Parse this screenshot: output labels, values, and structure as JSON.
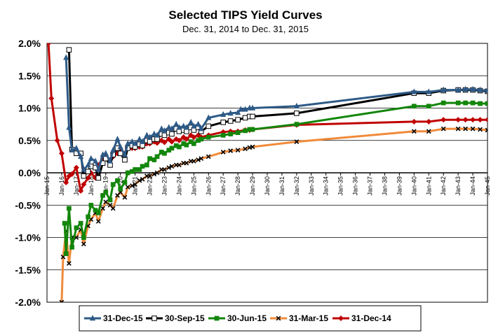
{
  "chart_data": {
    "type": "line",
    "title": "Selected TIPS Yield Curves",
    "subtitle": "Dec. 31, 2014 to Dec. 31, 2015",
    "xlabel": "",
    "ylabel": "",
    "x_ticks": [
      "Jan-15",
      "Jan-16",
      "Jan-17",
      "Jan-18",
      "Jan-19",
      "Jan-20",
      "Jan-21",
      "Jan-22",
      "Jan-23",
      "Jan-24",
      "Jan-25",
      "Jan-26",
      "Jan-27",
      "Jan-28",
      "Jan-29",
      "Jan-30",
      "Jan-31",
      "Jan-32",
      "Jan-33",
      "Jan-34",
      "Jan-35",
      "Jan-36",
      "Jan-37",
      "Jan-38",
      "Jan-39",
      "Jan-40",
      "Jan-41",
      "Jan-42",
      "Jan-43",
      "Jan-44",
      "Jan-45"
    ],
    "xlim": [
      2015,
      2045
    ],
    "ylim": [
      -2.0,
      2.0
    ],
    "y_ticks": [
      "-2.0%",
      "-1.5%",
      "-1.0%",
      "-0.5%",
      "0.0%",
      "0.5%",
      "1.0%",
      "1.5%",
      "2.0%"
    ],
    "y_tick_values": [
      -2.0,
      -1.5,
      -1.0,
      -0.5,
      0.0,
      0.5,
      1.0,
      1.5,
      2.0
    ],
    "grid": "horizontal",
    "legend_position": "bottom",
    "series": [
      {
        "name": "31-Dec-15",
        "color": "#2E5A87",
        "marker": "triangle",
        "points": [
          [
            2016.3,
            1.78
          ],
          [
            2016.5,
            0.7
          ],
          [
            2016.7,
            0.35
          ],
          [
            2017.0,
            0.38
          ],
          [
            2017.3,
            0.25
          ],
          [
            2017.5,
            0.05
          ],
          [
            2017.8,
            0.12
          ],
          [
            2018.0,
            0.22
          ],
          [
            2018.3,
            0.18
          ],
          [
            2018.5,
            0.05
          ],
          [
            2018.8,
            0.28
          ],
          [
            2019.0,
            0.3
          ],
          [
            2019.3,
            0.18
          ],
          [
            2019.5,
            0.35
          ],
          [
            2019.8,
            0.52
          ],
          [
            2020.0,
            0.4
          ],
          [
            2020.3,
            0.28
          ],
          [
            2020.5,
            0.45
          ],
          [
            2020.8,
            0.48
          ],
          [
            2021.0,
            0.45
          ],
          [
            2021.3,
            0.52
          ],
          [
            2021.5,
            0.48
          ],
          [
            2021.8,
            0.58
          ],
          [
            2022.0,
            0.55
          ],
          [
            2022.3,
            0.6
          ],
          [
            2022.5,
            0.58
          ],
          [
            2022.8,
            0.68
          ],
          [
            2023.0,
            0.65
          ],
          [
            2023.3,
            0.7
          ],
          [
            2023.5,
            0.68
          ],
          [
            2023.8,
            0.75
          ],
          [
            2024.0,
            0.7
          ],
          [
            2024.3,
            0.72
          ],
          [
            2024.5,
            0.7
          ],
          [
            2024.8,
            0.78
          ],
          [
            2025.0,
            0.72
          ],
          [
            2025.3,
            0.75
          ],
          [
            2025.5,
            0.68
          ],
          [
            2026.0,
            0.85
          ],
          [
            2027.0,
            0.9
          ],
          [
            2027.5,
            0.92
          ],
          [
            2028.0,
            0.93
          ],
          [
            2028.2,
            0.98
          ],
          [
            2028.5,
            0.98
          ],
          [
            2028.8,
            1.0
          ],
          [
            2029.0,
            1.0
          ],
          [
            2032.0,
            1.03
          ],
          [
            2040.0,
            1.25
          ],
          [
            2041.0,
            1.25
          ],
          [
            2042.0,
            1.28
          ],
          [
            2043.0,
            1.28
          ],
          [
            2043.5,
            1.29
          ],
          [
            2044.0,
            1.29
          ],
          [
            2044.5,
            1.28
          ],
          [
            2045.0,
            1.27
          ]
        ]
      },
      {
        "name": "30-Sep-15",
        "color": "#000000",
        "marker": "square-open",
        "points": [
          [
            2016.5,
            1.9
          ],
          [
            2016.7,
            0.36
          ],
          [
            2017.0,
            0.3
          ],
          [
            2017.3,
            0.3
          ],
          [
            2017.5,
            -0.05
          ],
          [
            2017.8,
            0.02
          ],
          [
            2018.0,
            0.1
          ],
          [
            2018.3,
            0.08
          ],
          [
            2018.5,
            -0.08
          ],
          [
            2018.8,
            0.15
          ],
          [
            2019.0,
            0.22
          ],
          [
            2019.3,
            0.12
          ],
          [
            2019.5,
            0.28
          ],
          [
            2019.8,
            0.38
          ],
          [
            2020.0,
            0.3
          ],
          [
            2020.3,
            0.2
          ],
          [
            2020.5,
            0.38
          ],
          [
            2020.8,
            0.42
          ],
          [
            2021.0,
            0.4
          ],
          [
            2021.3,
            0.44
          ],
          [
            2021.5,
            0.42
          ],
          [
            2021.8,
            0.5
          ],
          [
            2022.0,
            0.48
          ],
          [
            2022.3,
            0.52
          ],
          [
            2022.5,
            0.52
          ],
          [
            2022.8,
            0.6
          ],
          [
            2023.0,
            0.58
          ],
          [
            2023.3,
            0.62
          ],
          [
            2023.5,
            0.6
          ],
          [
            2023.8,
            0.68
          ],
          [
            2024.0,
            0.64
          ],
          [
            2024.3,
            0.66
          ],
          [
            2024.5,
            0.64
          ],
          [
            2024.8,
            0.7
          ],
          [
            2025.0,
            0.66
          ],
          [
            2025.3,
            0.7
          ],
          [
            2025.5,
            0.64
          ],
          [
            2026.0,
            0.72
          ],
          [
            2027.0,
            0.78
          ],
          [
            2027.5,
            0.8
          ],
          [
            2028.0,
            0.82
          ],
          [
            2028.5,
            0.85
          ],
          [
            2028.8,
            0.87
          ],
          [
            2029.0,
            0.87
          ],
          [
            2032.0,
            0.92
          ],
          [
            2040.0,
            1.23
          ],
          [
            2041.0,
            1.23
          ],
          [
            2042.0,
            1.27
          ],
          [
            2043.0,
            1.28
          ],
          [
            2043.5,
            1.28
          ],
          [
            2044.0,
            1.28
          ],
          [
            2044.5,
            1.27
          ],
          [
            2045.0,
            1.26
          ]
        ]
      },
      {
        "name": "30-Jun-15",
        "color": "#13860B",
        "marker": "square",
        "points": [
          [
            2016.2,
            -0.78
          ],
          [
            2016.3,
            -1.25
          ],
          [
            2016.5,
            -0.55
          ],
          [
            2016.7,
            -1.15
          ],
          [
            2017.0,
            -0.85
          ],
          [
            2017.3,
            -0.78
          ],
          [
            2017.5,
            -1.0
          ],
          [
            2017.8,
            -0.68
          ],
          [
            2018.0,
            -0.5
          ],
          [
            2018.3,
            -0.58
          ],
          [
            2018.5,
            -0.62
          ],
          [
            2018.8,
            -0.35
          ],
          [
            2019.0,
            -0.3
          ],
          [
            2019.3,
            -0.42
          ],
          [
            2019.5,
            -0.18
          ],
          [
            2019.8,
            -0.12
          ],
          [
            2020.0,
            -0.25
          ],
          [
            2020.3,
            -0.15
          ],
          [
            2020.5,
            0.0
          ],
          [
            2020.8,
            0.02
          ],
          [
            2021.0,
            0.05
          ],
          [
            2021.3,
            0.05
          ],
          [
            2021.5,
            0.1
          ],
          [
            2021.8,
            0.12
          ],
          [
            2022.0,
            0.22
          ],
          [
            2022.3,
            0.2
          ],
          [
            2022.5,
            0.25
          ],
          [
            2022.8,
            0.32
          ],
          [
            2023.0,
            0.3
          ],
          [
            2023.3,
            0.35
          ],
          [
            2023.5,
            0.38
          ],
          [
            2023.8,
            0.42
          ],
          [
            2024.0,
            0.4
          ],
          [
            2024.3,
            0.45
          ],
          [
            2024.5,
            0.43
          ],
          [
            2024.8,
            0.48
          ],
          [
            2025.0,
            0.45
          ],
          [
            2025.3,
            0.5
          ],
          [
            2025.5,
            0.52
          ],
          [
            2026.0,
            0.55
          ],
          [
            2027.0,
            0.58
          ],
          [
            2027.5,
            0.6
          ],
          [
            2028.0,
            0.62
          ],
          [
            2028.5,
            0.65
          ],
          [
            2028.8,
            0.67
          ],
          [
            2029.0,
            0.67
          ],
          [
            2032.0,
            0.75
          ],
          [
            2040.0,
            1.03
          ],
          [
            2041.0,
            1.03
          ],
          [
            2042.0,
            1.08
          ],
          [
            2043.0,
            1.08
          ],
          [
            2043.5,
            1.08
          ],
          [
            2044.0,
            1.08
          ],
          [
            2044.5,
            1.07
          ],
          [
            2045.0,
            1.07
          ]
        ]
      },
      {
        "name": "31-Mar-15",
        "color": "#F08A3A",
        "marker": "x",
        "points": [
          [
            2016.0,
            -2.0
          ],
          [
            2016.1,
            -1.3
          ],
          [
            2016.3,
            -0.9
          ],
          [
            2016.5,
            -1.4
          ],
          [
            2016.7,
            -1.0
          ],
          [
            2017.0,
            -1.0
          ],
          [
            2017.3,
            -0.88
          ],
          [
            2017.5,
            -1.1
          ],
          [
            2017.8,
            -0.82
          ],
          [
            2018.0,
            -0.72
          ],
          [
            2018.3,
            -0.62
          ],
          [
            2018.5,
            -0.75
          ],
          [
            2018.8,
            -0.55
          ],
          [
            2019.0,
            -0.45
          ],
          [
            2019.3,
            -0.5
          ],
          [
            2019.5,
            -0.55
          ],
          [
            2019.8,
            -0.35
          ],
          [
            2020.0,
            -0.3
          ],
          [
            2020.3,
            -0.38
          ],
          [
            2020.5,
            -0.22
          ],
          [
            2020.8,
            -0.2
          ],
          [
            2021.0,
            -0.18
          ],
          [
            2021.3,
            -0.12
          ],
          [
            2021.5,
            -0.1
          ],
          [
            2021.8,
            -0.05
          ],
          [
            2022.0,
            -0.05
          ],
          [
            2022.3,
            -0.02
          ],
          [
            2022.5,
            0.0
          ],
          [
            2022.8,
            0.05
          ],
          [
            2023.0,
            0.05
          ],
          [
            2023.3,
            0.08
          ],
          [
            2023.5,
            0.1
          ],
          [
            2023.8,
            0.12
          ],
          [
            2024.0,
            0.12
          ],
          [
            2024.3,
            0.15
          ],
          [
            2024.5,
            0.15
          ],
          [
            2024.8,
            0.18
          ],
          [
            2025.0,
            0.18
          ],
          [
            2025.3,
            0.2
          ],
          [
            2025.5,
            0.22
          ],
          [
            2026.0,
            0.25
          ],
          [
            2027.0,
            0.32
          ],
          [
            2027.5,
            0.34
          ],
          [
            2028.0,
            0.35
          ],
          [
            2028.5,
            0.37
          ],
          [
            2028.8,
            0.39
          ],
          [
            2029.0,
            0.4
          ],
          [
            2032.0,
            0.48
          ],
          [
            2040.0,
            0.64
          ],
          [
            2041.0,
            0.64
          ],
          [
            2042.0,
            0.68
          ],
          [
            2043.0,
            0.68
          ],
          [
            2043.5,
            0.68
          ],
          [
            2044.0,
            0.68
          ],
          [
            2044.5,
            0.67
          ],
          [
            2045.0,
            0.66
          ]
        ]
      },
      {
        "name": "31-Dec-14",
        "color": "#C00000",
        "marker": "diamond",
        "points": [
          [
            2015.1,
            2.0
          ],
          [
            2015.3,
            1.15
          ],
          [
            2015.7,
            0.5
          ],
          [
            2016.0,
            0.3
          ],
          [
            2016.3,
            -0.15
          ],
          [
            2016.5,
            -0.05
          ],
          [
            2016.7,
            -0.02
          ],
          [
            2017.0,
            0.08
          ],
          [
            2017.3,
            -0.28
          ],
          [
            2017.5,
            -0.18
          ],
          [
            2017.8,
            -0.08
          ],
          [
            2018.0,
            0.0
          ],
          [
            2018.3,
            -0.08
          ],
          [
            2018.5,
            0.12
          ],
          [
            2018.8,
            0.22
          ],
          [
            2019.0,
            0.26
          ],
          [
            2019.3,
            0.2
          ],
          [
            2019.5,
            0.25
          ],
          [
            2019.8,
            0.3
          ],
          [
            2020.0,
            0.35
          ],
          [
            2020.3,
            0.3
          ],
          [
            2020.5,
            0.38
          ],
          [
            2020.8,
            0.38
          ],
          [
            2021.0,
            0.38
          ],
          [
            2021.3,
            0.4
          ],
          [
            2021.5,
            0.4
          ],
          [
            2021.8,
            0.45
          ],
          [
            2022.0,
            0.45
          ],
          [
            2022.3,
            0.48
          ],
          [
            2022.5,
            0.46
          ],
          [
            2022.8,
            0.5
          ],
          [
            2023.0,
            0.47
          ],
          [
            2023.3,
            0.52
          ],
          [
            2023.5,
            0.48
          ],
          [
            2023.8,
            0.52
          ],
          [
            2024.0,
            0.5
          ],
          [
            2024.3,
            0.55
          ],
          [
            2024.5,
            0.52
          ],
          [
            2024.8,
            0.58
          ],
          [
            2025.0,
            0.55
          ],
          [
            2025.3,
            0.58
          ],
          [
            2025.5,
            0.55
          ],
          [
            2026.0,
            0.58
          ],
          [
            2027.0,
            0.63
          ],
          [
            2027.5,
            0.64
          ],
          [
            2028.0,
            0.64
          ],
          [
            2028.5,
            0.66
          ],
          [
            2028.8,
            0.66
          ],
          [
            2029.0,
            0.67
          ],
          [
            2032.0,
            0.74
          ],
          [
            2040.0,
            0.79
          ],
          [
            2041.0,
            0.79
          ],
          [
            2042.0,
            0.82
          ],
          [
            2043.0,
            0.82
          ],
          [
            2043.5,
            0.82
          ],
          [
            2044.0,
            0.82
          ],
          [
            2044.5,
            0.82
          ],
          [
            2045.0,
            0.82
          ]
        ]
      }
    ]
  }
}
